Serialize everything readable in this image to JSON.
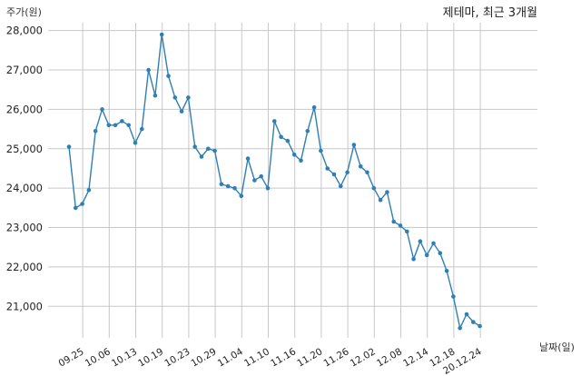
{
  "chart_data": {
    "type": "line",
    "title": "제테마, 최근 3개월",
    "ylabel": "주가(원)",
    "xlabel": "날짜(일)",
    "ylim": [
      20200,
      28200
    ],
    "y_ticks": [
      21000,
      22000,
      23000,
      24000,
      25000,
      26000,
      27000,
      28000
    ],
    "y_tick_labels": [
      "21,000",
      "22,000",
      "23,000",
      "24,000",
      "25,000",
      "26,000",
      "27,000",
      "28,000"
    ],
    "x_tick_labels": [
      "09.25",
      "10.06",
      "10.13",
      "10.19",
      "10.23",
      "10.29",
      "11.04",
      "11.10",
      "11.16",
      "11.20",
      "11.26",
      "12.02",
      "12.08",
      "12.14",
      "12.18",
      "20.12.24"
    ],
    "x_tick_indices": [
      2,
      6,
      10,
      14,
      18,
      22,
      26,
      30,
      34,
      38,
      42,
      46,
      50,
      54,
      58,
      62
    ],
    "grid": true,
    "series": [
      {
        "color": "#2f7fb5",
        "values": [
          25050,
          23500,
          23600,
          23950,
          25450,
          26000,
          25600,
          25600,
          25700,
          25600,
          25150,
          25500,
          27000,
          26350,
          27900,
          26850,
          26300,
          25950,
          26300,
          25050,
          24800,
          25000,
          24950,
          24100,
          24050,
          24000,
          23800,
          24750,
          24200,
          24300,
          24000,
          25700,
          25300,
          25200,
          24850,
          24700,
          25450,
          26050,
          24950,
          24500,
          24350,
          24050,
          24400,
          25100,
          24550,
          24400,
          24000,
          23700,
          23900,
          23150,
          23050,
          22900,
          22200,
          22650,
          22300,
          22600,
          22350,
          21900,
          21250,
          20450,
          20800,
          20600,
          20500
        ]
      }
    ]
  }
}
